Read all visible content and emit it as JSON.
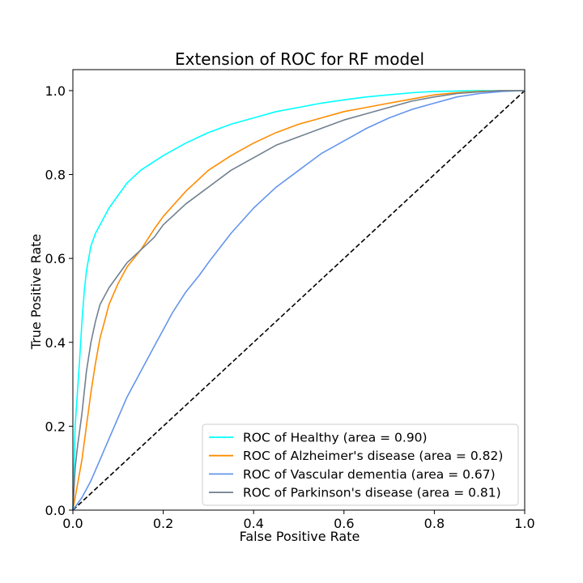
{
  "chart_data": {
    "type": "line",
    "title": "Extension of ROC for RF model",
    "xlabel": "False Positive Rate",
    "ylabel": "True Positive Rate",
    "xlim": [
      0.0,
      1.0
    ],
    "ylim": [
      0.0,
      1.05
    ],
    "x_ticks": [
      "0.0",
      "0.2",
      "0.4",
      "0.6",
      "0.8",
      "1.0"
    ],
    "y_ticks": [
      "0.0",
      "0.2",
      "0.4",
      "0.6",
      "0.8",
      "1.0"
    ],
    "grid": false,
    "legend_position": "lower-right",
    "series": [
      {
        "name": "ROC of Healthy (area = 0.90)",
        "color": "#00ffff",
        "x": [
          0,
          0.005,
          0.01,
          0.015,
          0.02,
          0.025,
          0.03,
          0.04,
          0.05,
          0.06,
          0.08,
          0.1,
          0.12,
          0.15,
          0.2,
          0.25,
          0.3,
          0.35,
          0.4,
          0.45,
          0.5,
          0.55,
          0.6,
          0.65,
          0.7,
          0.75,
          0.8,
          0.85,
          0.9,
          0.95,
          1.0
        ],
        "y": [
          0,
          0.2,
          0.28,
          0.36,
          0.45,
          0.52,
          0.57,
          0.63,
          0.66,
          0.68,
          0.72,
          0.75,
          0.78,
          0.81,
          0.845,
          0.875,
          0.9,
          0.92,
          0.935,
          0.95,
          0.96,
          0.97,
          0.978,
          0.985,
          0.99,
          0.995,
          0.998,
          0.999,
          1.0,
          1.0,
          1.0
        ]
      },
      {
        "name": "ROC of Alzheimer's disease (area = 0.82)",
        "color": "#ff8c00",
        "x": [
          0,
          0.01,
          0.02,
          0.03,
          0.04,
          0.05,
          0.06,
          0.07,
          0.08,
          0.1,
          0.12,
          0.15,
          0.18,
          0.2,
          0.25,
          0.3,
          0.35,
          0.4,
          0.45,
          0.5,
          0.55,
          0.6,
          0.65,
          0.7,
          0.75,
          0.8,
          0.85,
          0.9,
          0.95,
          1.0
        ],
        "y": [
          0,
          0.06,
          0.12,
          0.2,
          0.28,
          0.35,
          0.41,
          0.45,
          0.49,
          0.54,
          0.58,
          0.62,
          0.67,
          0.7,
          0.76,
          0.81,
          0.845,
          0.875,
          0.9,
          0.92,
          0.935,
          0.95,
          0.96,
          0.97,
          0.98,
          0.99,
          0.995,
          0.998,
          1.0,
          1.0
        ]
      },
      {
        "name": "ROC of Vascular dementia (area = 0.67)",
        "color": "#6495ed",
        "x": [
          0,
          0.02,
          0.04,
          0.06,
          0.08,
          0.1,
          0.12,
          0.15,
          0.18,
          0.2,
          0.22,
          0.25,
          0.28,
          0.3,
          0.35,
          0.4,
          0.45,
          0.5,
          0.55,
          0.6,
          0.65,
          0.7,
          0.75,
          0.8,
          0.85,
          0.9,
          0.95,
          1.0
        ],
        "y": [
          0,
          0.03,
          0.07,
          0.12,
          0.17,
          0.22,
          0.27,
          0.33,
          0.39,
          0.43,
          0.47,
          0.52,
          0.56,
          0.59,
          0.66,
          0.72,
          0.77,
          0.81,
          0.85,
          0.88,
          0.91,
          0.935,
          0.955,
          0.97,
          0.985,
          0.993,
          0.998,
          1.0
        ]
      },
      {
        "name": "ROC of Parkinson's disease (area = 0.81)",
        "color": "#708090",
        "x": [
          0,
          0.005,
          0.01,
          0.02,
          0.03,
          0.04,
          0.05,
          0.06,
          0.08,
          0.1,
          0.12,
          0.15,
          0.18,
          0.2,
          0.25,
          0.3,
          0.35,
          0.4,
          0.45,
          0.5,
          0.55,
          0.6,
          0.65,
          0.7,
          0.75,
          0.8,
          0.85,
          0.9,
          0.95,
          1.0
        ],
        "y": [
          0,
          0.1,
          0.15,
          0.23,
          0.33,
          0.4,
          0.45,
          0.49,
          0.53,
          0.56,
          0.59,
          0.62,
          0.65,
          0.68,
          0.73,
          0.77,
          0.81,
          0.84,
          0.87,
          0.89,
          0.91,
          0.93,
          0.945,
          0.96,
          0.975,
          0.985,
          0.993,
          0.997,
          1.0,
          1.0
        ]
      }
    ],
    "reference_line": {
      "x": [
        0,
        1
      ],
      "y": [
        0,
        1
      ],
      "color": "#000000",
      "dashed": true
    }
  }
}
